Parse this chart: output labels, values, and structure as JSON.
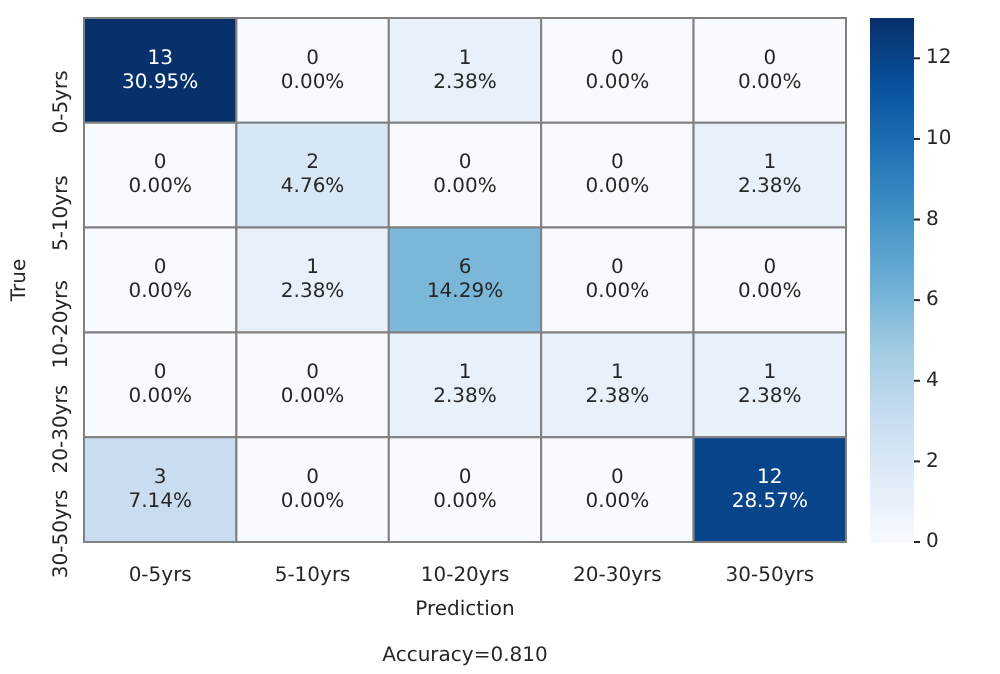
{
  "chart_data": {
    "type": "heatmap",
    "xlabel": "Prediction",
    "ylabel": "True",
    "annotations": [
      "Accuracy=0.810"
    ],
    "categories": [
      "0-5yrs",
      "5-10yrs",
      "10-20yrs",
      "20-30yrs",
      "30-50yrs"
    ],
    "y_categories": [
      "0-5yrs",
      "5-10yrs",
      "10-20yrs",
      "20-30yrs",
      "30-50yrs"
    ],
    "cells": [
      [
        13,
        0,
        1,
        0,
        0
      ],
      [
        0,
        2,
        0,
        0,
        1
      ],
      [
        0,
        1,
        6,
        0,
        0
      ],
      [
        0,
        0,
        1,
        1,
        1
      ],
      [
        3,
        0,
        0,
        0,
        12
      ]
    ],
    "cell_labels": [
      [
        "13\n30.95%",
        "0\n0.00%",
        "1\n2.38%",
        "0\n0.00%",
        "0\n0.00%"
      ],
      [
        "0\n0.00%",
        "2\n4.76%",
        "0\n0.00%",
        "0\n0.00%",
        "1\n2.38%"
      ],
      [
        "0\n0.00%",
        "1\n2.38%",
        "6\n14.29%",
        "0\n0.00%",
        "0\n0.00%"
      ],
      [
        "0\n0.00%",
        "0\n0.00%",
        "1\n2.38%",
        "1\n2.38%",
        "1\n2.38%"
      ],
      [
        "3\n7.14%",
        "0\n0.00%",
        "0\n0.00%",
        "0\n0.00%",
        "12\n28.57%"
      ]
    ],
    "clim": [
      0,
      13
    ],
    "cticks": [
      0,
      2,
      4,
      6,
      8,
      10,
      12
    ]
  }
}
